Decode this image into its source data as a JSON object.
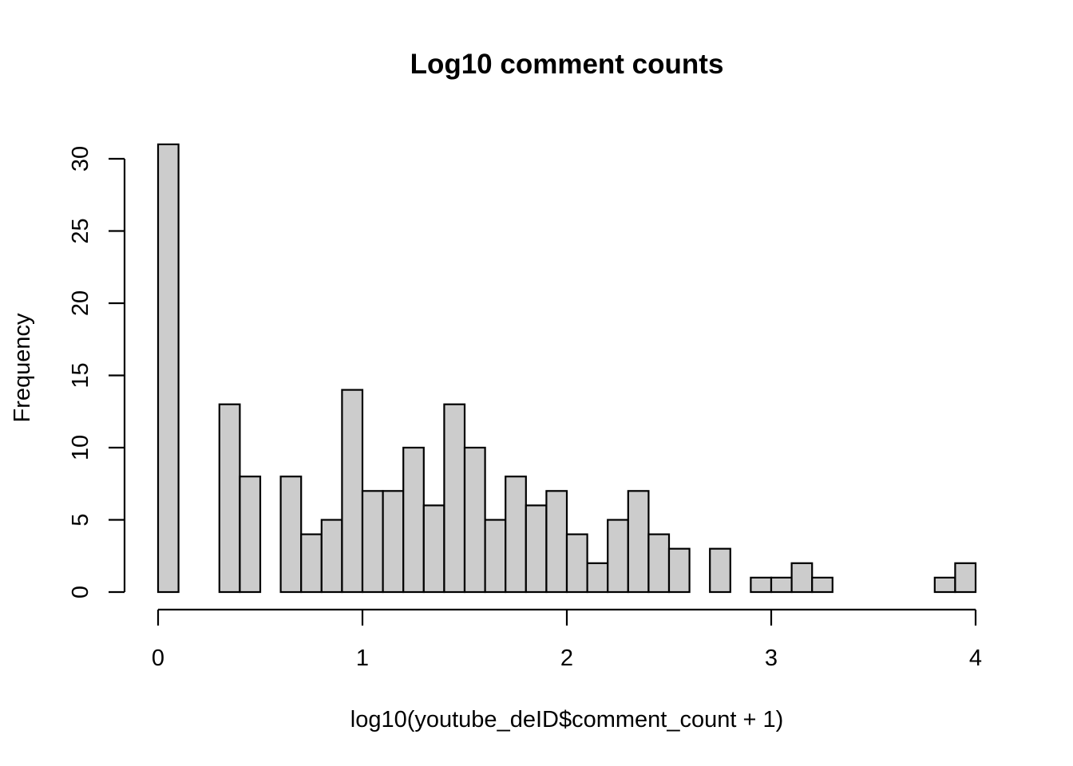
{
  "chart_data": {
    "type": "bar",
    "title": "Log10 comment counts",
    "xlabel": "log10(youtube_deID$comment_count + 1)",
    "ylabel": "Frequency",
    "bin_width": 0.1,
    "bin_start": 0,
    "xlim": [
      0,
      4
    ],
    "ylim": [
      0,
      31
    ],
    "xticks": [
      "0",
      "1",
      "2",
      "3",
      "4"
    ],
    "yticks": [
      "0",
      "5",
      "10",
      "15",
      "20",
      "25",
      "30"
    ],
    "values": [
      31,
      0,
      0,
      13,
      8,
      0,
      8,
      4,
      5,
      14,
      7,
      7,
      10,
      6,
      13,
      10,
      5,
      8,
      6,
      7,
      4,
      2,
      5,
      7,
      4,
      3,
      0,
      3,
      0,
      1,
      1,
      2,
      1,
      0,
      0,
      0,
      0,
      0,
      1,
      2
    ],
    "bar_fill": "#cccccc",
    "bar_stroke": "#000000",
    "grid": false
  }
}
